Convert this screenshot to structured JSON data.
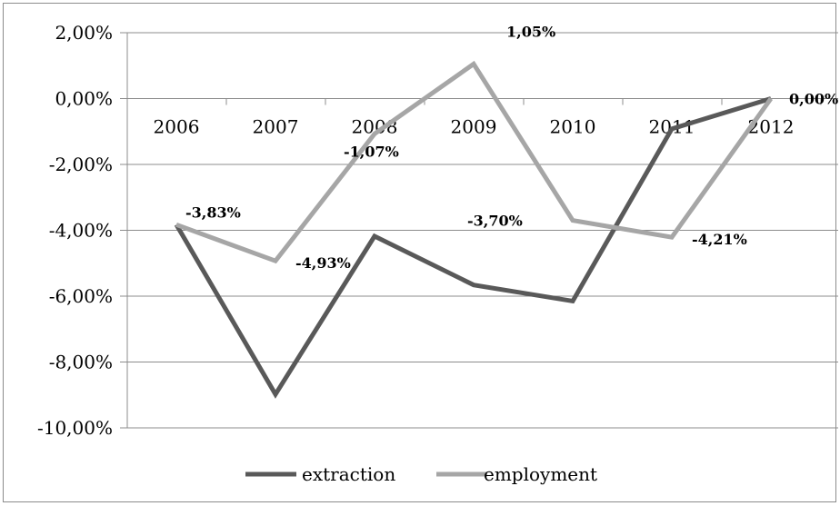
{
  "chart_data": {
    "type": "line",
    "title": "",
    "xlabel": "",
    "ylabel": "",
    "categories": [
      "2006",
      "2007",
      "2008",
      "2009",
      "2010",
      "2011",
      "2012"
    ],
    "ylim": [
      -0.1,
      0.02
    ],
    "ytick_values": [
      0.02,
      0.0,
      -0.02,
      -0.04,
      -0.06,
      -0.08,
      -0.1
    ],
    "ytick_labels": [
      "2,00%",
      "0,00%",
      "-2,00%",
      "-4,00%",
      "-6,00%",
      "-8,00%",
      "-10,00%"
    ],
    "grid": true,
    "legend_position": "bottom",
    "series": [
      {
        "name": "extraction",
        "color": "#595959",
        "values": [
          -0.0383,
          -0.0898,
          -0.0418,
          -0.0566,
          -0.0615,
          -0.0092,
          0.0
        ]
      },
      {
        "name": "employment",
        "color": "#a6a6a6",
        "values": [
          -0.0383,
          -0.0493,
          -0.0107,
          0.0105,
          -0.037,
          -0.0421,
          0.0
        ],
        "data_labels": [
          "-3,83%",
          "-4,93%",
          "-1,07%",
          "1,05%",
          "-3,70%",
          "-4,21%",
          "0,00%"
        ]
      }
    ]
  }
}
